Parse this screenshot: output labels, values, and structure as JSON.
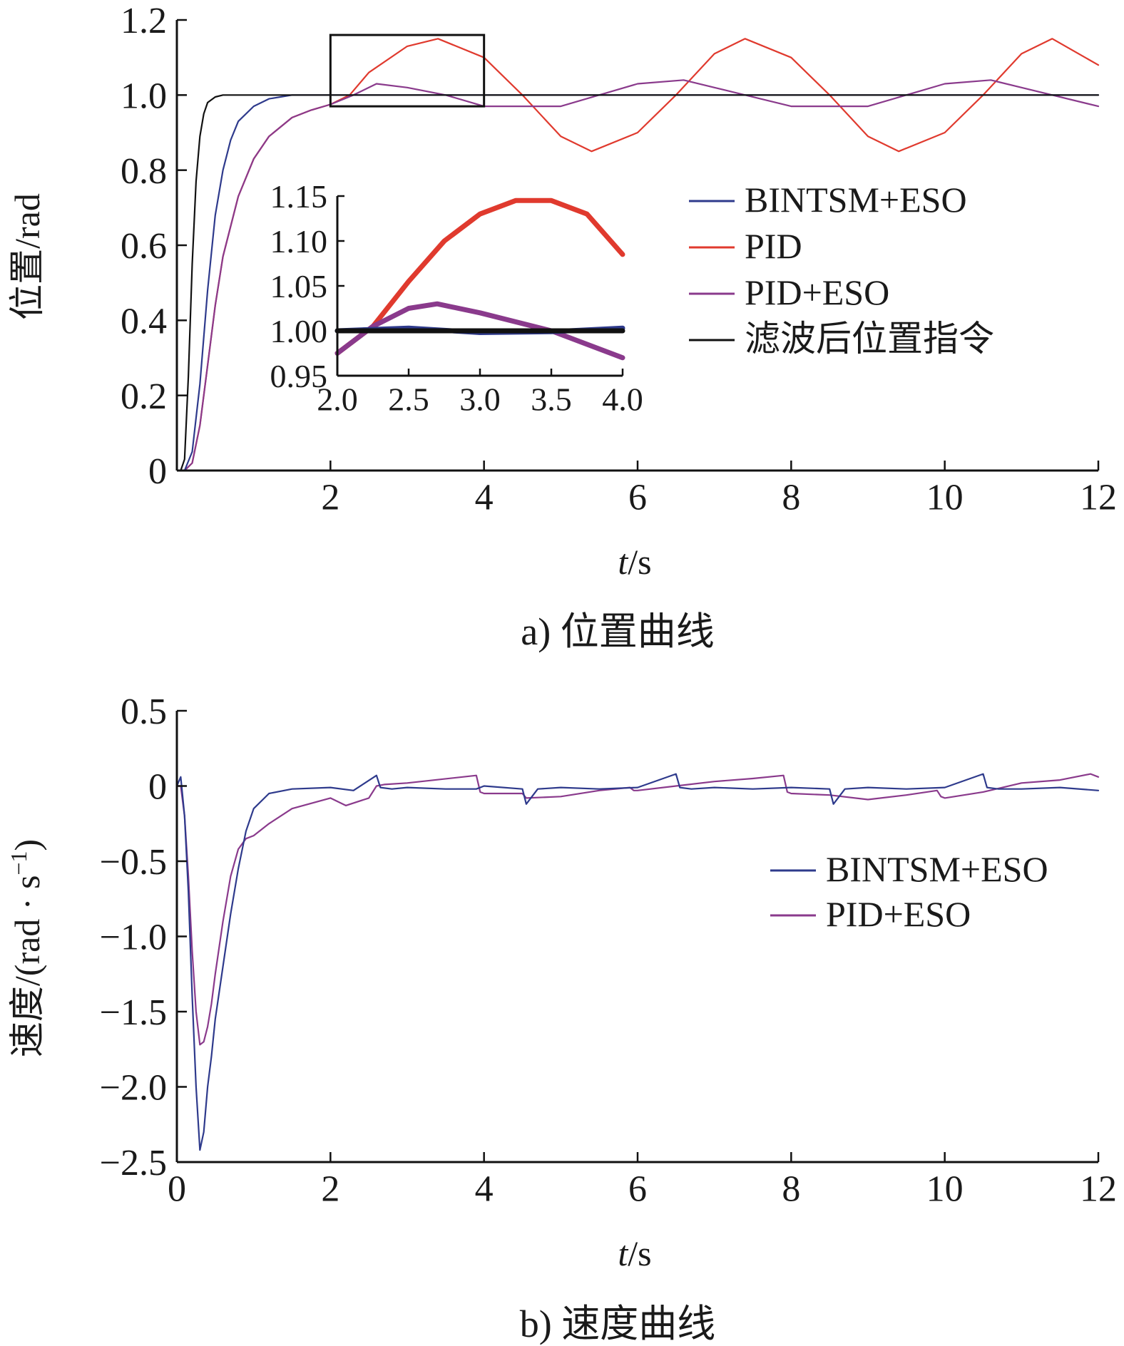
{
  "chart_data": [
    {
      "type": "line",
      "caption": "a) 位置曲线",
      "xlabel_var": "t",
      "xlabel_unit": "/s",
      "ylabel": "位置/rad",
      "xlim": [
        0,
        12
      ],
      "ylim": [
        0,
        1.2
      ],
      "xticks": [
        2,
        4,
        6,
        8,
        10,
        12
      ],
      "xtick_labels": [
        "2",
        "4",
        "6",
        "8",
        "10",
        "12"
      ],
      "yticks": [
        0,
        0.2,
        0.4,
        0.6,
        0.8,
        1.0,
        1.2
      ],
      "ytick_labels": [
        "0",
        "0.2",
        "0.4",
        "0.6",
        "0.8",
        "1.0",
        "1.2"
      ],
      "grid": false,
      "legend_position": "right",
      "colors": {
        "BINTSM+ESO": "#2e3a8c",
        "PID": "#e03a2e",
        "PID+ESO": "#8a3a8c",
        "reference": "#111111"
      },
      "series": [
        {
          "name": "BINTSM+ESO",
          "x": [
            0.1,
            0.2,
            0.3,
            0.4,
            0.5,
            0.6,
            0.7,
            0.8,
            1.0,
            1.2,
            1.5,
            2.0,
            3.0,
            4.0,
            6.0,
            8.0,
            10.0,
            12.0
          ],
          "y": [
            0.0,
            0.05,
            0.23,
            0.48,
            0.68,
            0.8,
            0.88,
            0.93,
            0.97,
            0.99,
            1.0,
            1.0,
            1.0,
            1.0,
            1.0,
            1.0,
            1.0,
            1.0
          ]
        },
        {
          "name": "PID",
          "x": [
            0.1,
            0.2,
            0.3,
            0.4,
            0.5,
            0.6,
            0.8,
            1.0,
            1.2,
            1.5,
            1.75,
            2.0,
            2.25,
            2.5,
            3.0,
            3.4,
            4.0,
            4.5,
            5.0,
            5.4,
            6.0,
            6.5,
            7.0,
            7.4,
            8.0,
            8.5,
            9.0,
            9.4,
            10.0,
            10.5,
            11.0,
            11.4,
            12.0
          ],
          "y": [
            0.0,
            0.02,
            0.12,
            0.28,
            0.44,
            0.57,
            0.73,
            0.83,
            0.89,
            0.94,
            0.96,
            0.975,
            1.0,
            1.06,
            1.13,
            1.15,
            1.1,
            1.0,
            0.89,
            0.85,
            0.9,
            1.0,
            1.11,
            1.15,
            1.1,
            1.0,
            0.89,
            0.85,
            0.9,
            1.0,
            1.11,
            1.15,
            1.08
          ]
        },
        {
          "name": "PID+ESO",
          "x": [
            0.1,
            0.2,
            0.3,
            0.4,
            0.5,
            0.6,
            0.8,
            1.0,
            1.2,
            1.5,
            1.75,
            2.0,
            2.3,
            2.6,
            3.0,
            3.5,
            4.0,
            5.0,
            6.0,
            6.6,
            7.0,
            8.0,
            9.0,
            10.0,
            10.6,
            11.0,
            12.0
          ],
          "y": [
            0.0,
            0.02,
            0.12,
            0.28,
            0.44,
            0.57,
            0.73,
            0.83,
            0.89,
            0.94,
            0.96,
            0.975,
            1.0,
            1.03,
            1.02,
            1.0,
            0.97,
            0.97,
            1.03,
            1.04,
            1.02,
            0.97,
            0.97,
            1.03,
            1.04,
            1.02,
            0.97
          ]
        },
        {
          "name": "滤波后位置指令",
          "x": [
            0.05,
            0.1,
            0.15,
            0.2,
            0.25,
            0.3,
            0.35,
            0.4,
            0.5,
            0.6,
            0.7,
            1.0,
            2.0,
            4.0,
            6.0,
            8.0,
            10.0,
            12.0
          ],
          "y": [
            0.0,
            0.03,
            0.25,
            0.55,
            0.77,
            0.89,
            0.95,
            0.98,
            0.995,
            1.0,
            1.0,
            1.0,
            1.0,
            1.0,
            1.0,
            1.0,
            1.0,
            1.0
          ]
        }
      ],
      "zoom_box": {
        "xlim": [
          2.0,
          4.0
        ],
        "ylim": [
          0.97,
          1.16
        ]
      },
      "inset": {
        "xlim": [
          2.0,
          4.0
        ],
        "ylim": [
          0.95,
          1.15
        ],
        "xticks": [
          2.0,
          2.5,
          3.0,
          3.5,
          4.0
        ],
        "xtick_labels": [
          "2.0",
          "2.5",
          "3.0",
          "3.5",
          "4.0"
        ],
        "yticks": [
          0.95,
          1.0,
          1.05,
          1.1,
          1.15
        ],
        "ytick_labels": [
          "0.95",
          "1.00",
          "1.05",
          "1.10",
          "1.15"
        ],
        "series": [
          {
            "name": "PID",
            "x": [
              2.0,
              2.25,
              2.5,
              2.75,
              3.0,
              3.25,
              3.5,
              3.75,
              4.0
            ],
            "y": [
              0.975,
              1.005,
              1.055,
              1.1,
              1.13,
              1.145,
              1.145,
              1.13,
              1.085
            ]
          },
          {
            "name": "PID+ESO",
            "x": [
              2.0,
              2.25,
              2.5,
              2.7,
              3.0,
              3.5,
              4.0
            ],
            "y": [
              0.975,
              1.005,
              1.025,
              1.03,
              1.02,
              1.0,
              0.97
            ]
          },
          {
            "name": "BINTSM+ESO",
            "x": [
              2.0,
              2.5,
              3.0,
              3.5,
              4.0
            ],
            "y": [
              1.0,
              1.003,
              0.998,
              0.999,
              1.003
            ]
          },
          {
            "name": "滤波后位置指令",
            "x": [
              2.0,
              4.0
            ],
            "y": [
              1.0,
              1.0
            ]
          }
        ]
      }
    },
    {
      "type": "line",
      "caption": "b) 速度曲线",
      "xlabel_var": "t",
      "xlabel_unit": "/s",
      "ylabel": "速度/(rad · s",
      "ylabel_sup": "−1",
      "ylabel_end": ")",
      "xlim": [
        0,
        12
      ],
      "ylim": [
        -2.5,
        0.5
      ],
      "xticks": [
        0,
        2,
        4,
        6,
        8,
        10,
        12
      ],
      "xtick_labels": [
        "0",
        "2",
        "4",
        "6",
        "8",
        "10",
        "12"
      ],
      "yticks": [
        0.5,
        0,
        -0.5,
        -1.0,
        -1.5,
        -2.0,
        -2.5
      ],
      "ytick_labels": [
        "0.5",
        "0",
        "−0.5",
        "−1.0",
        "−1.5",
        "−2.0",
        "−2.5"
      ],
      "grid": false,
      "legend_position": "right",
      "colors": {
        "BINTSM+ESO": "#2e3a8c",
        "PID+ESO": "#8a3a8c"
      },
      "series": [
        {
          "name": "BINTSM+ESO",
          "x": [
            0.0,
            0.05,
            0.1,
            0.15,
            0.2,
            0.25,
            0.3,
            0.35,
            0.4,
            0.45,
            0.5,
            0.6,
            0.7,
            0.8,
            0.9,
            1.0,
            1.2,
            1.5,
            2.0,
            2.3,
            2.6,
            2.65,
            2.8,
            3.0,
            3.5,
            3.9,
            4.0,
            4.5,
            4.55,
            4.7,
            5.0,
            5.5,
            6.0,
            6.5,
            6.55,
            6.7,
            7.0,
            7.5,
            8.0,
            8.5,
            8.55,
            8.7,
            9.0,
            9.5,
            10.0,
            10.5,
            10.55,
            10.7,
            11.0,
            11.5,
            12.0
          ],
          "y": [
            0.0,
            0.06,
            -0.2,
            -0.7,
            -1.4,
            -2.0,
            -2.42,
            -2.3,
            -2.0,
            -1.8,
            -1.55,
            -1.2,
            -0.85,
            -0.55,
            -0.3,
            -0.15,
            -0.05,
            -0.02,
            -0.01,
            -0.03,
            0.07,
            -0.01,
            -0.02,
            -0.01,
            -0.02,
            -0.02,
            0.0,
            -0.02,
            -0.12,
            -0.02,
            -0.01,
            -0.02,
            -0.01,
            0.08,
            -0.01,
            -0.02,
            -0.01,
            -0.02,
            -0.01,
            -0.02,
            -0.12,
            -0.02,
            -0.01,
            -0.02,
            -0.01,
            0.08,
            -0.01,
            -0.02,
            -0.02,
            -0.01,
            -0.03
          ]
        },
        {
          "name": "PID+ESO",
          "x": [
            0.0,
            0.05,
            0.1,
            0.15,
            0.2,
            0.25,
            0.3,
            0.35,
            0.4,
            0.45,
            0.5,
            0.6,
            0.7,
            0.8,
            0.9,
            1.0,
            1.2,
            1.5,
            2.0,
            2.2,
            2.5,
            2.6,
            2.7,
            3.0,
            3.9,
            3.95,
            4.0,
            4.5,
            4.55,
            5.0,
            5.5,
            5.9,
            5.95,
            6.0,
            6.5,
            7.0,
            7.5,
            7.9,
            7.95,
            8.0,
            8.5,
            9.0,
            9.5,
            9.9,
            9.95,
            10.0,
            10.5,
            11.0,
            11.5,
            11.9,
            12.0
          ],
          "y": [
            0.0,
            0.0,
            -0.2,
            -0.6,
            -1.1,
            -1.5,
            -1.72,
            -1.7,
            -1.6,
            -1.45,
            -1.25,
            -0.9,
            -0.6,
            -0.42,
            -0.35,
            -0.33,
            -0.25,
            -0.15,
            -0.08,
            -0.13,
            -0.08,
            0.0,
            0.01,
            0.02,
            0.07,
            -0.04,
            -0.05,
            -0.05,
            -0.08,
            -0.07,
            -0.03,
            -0.01,
            -0.03,
            -0.03,
            0.0,
            0.03,
            0.05,
            0.07,
            -0.04,
            -0.05,
            -0.06,
            -0.09,
            -0.06,
            -0.03,
            -0.07,
            -0.08,
            -0.04,
            0.02,
            0.04,
            0.08,
            0.06
          ]
        }
      ]
    }
  ]
}
